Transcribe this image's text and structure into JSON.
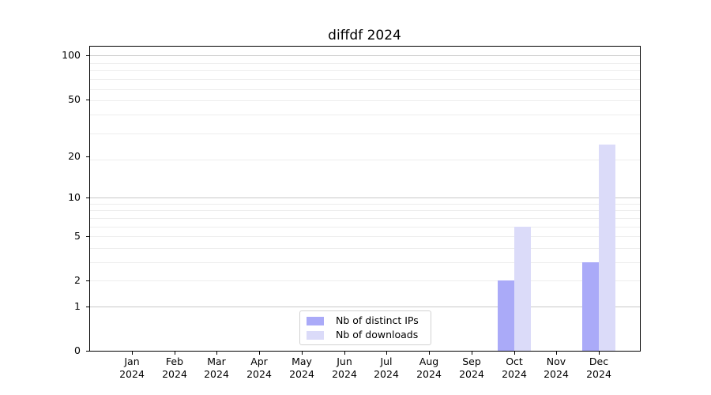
{
  "title": "diffdf 2024",
  "chart_data": {
    "type": "bar",
    "title": "diffdf 2024",
    "categories": [
      "Jan 2024",
      "Feb 2024",
      "Mar 2024",
      "Apr 2024",
      "May 2024",
      "Jun 2024",
      "Jul 2024",
      "Aug 2024",
      "Sep 2024",
      "Oct 2024",
      "Nov 2024",
      "Dec 2024"
    ],
    "month_labels": [
      "Jan",
      "Feb",
      "Mar",
      "Apr",
      "May",
      "Jun",
      "Jul",
      "Aug",
      "Sep",
      "Oct",
      "Nov",
      "Dec"
    ],
    "year_label": "2024",
    "series": [
      {
        "name": "Nb of distinct IPs",
        "color": "#aaaaf8",
        "values": [
          0,
          0,
          0,
          0,
          0,
          0,
          0,
          0,
          0,
          2,
          0,
          3
        ]
      },
      {
        "name": "Nb of downloads",
        "color": "#dbdbf9",
        "values": [
          0,
          0,
          0,
          0,
          0,
          0,
          0,
          0,
          0,
          6,
          0,
          24
        ]
      }
    ],
    "yticks": [
      0,
      1,
      2,
      5,
      10,
      20,
      50,
      100
    ],
    "ytick_labels": [
      "0",
      "1",
      "2",
      "5",
      "10",
      "20",
      "50",
      "100"
    ],
    "ylim": [
      0,
      115
    ],
    "scale": "log10(value+1)",
    "xlabel": "",
    "ylabel": "",
    "grid": "horizontal",
    "legend_position": "lower center",
    "colors": {
      "major_grid": "#c9c9c9",
      "minor_grid": "#ededed",
      "spine": "#000000",
      "text": "#000000",
      "background": "#ffffff"
    }
  }
}
